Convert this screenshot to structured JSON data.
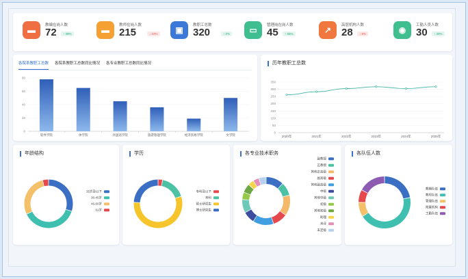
{
  "stats": [
    {
      "label": "教编在岗人数",
      "value": "72",
      "badge": "↑ 39%",
      "dir": "up",
      "color": "#f06e44",
      "icon": "▬"
    },
    {
      "label": "教师在岗人数",
      "value": "215",
      "badge": "↓ 10%",
      "dir": "down",
      "color": "#f5a033",
      "icon": "▬"
    },
    {
      "label": "教职工总数",
      "value": "320",
      "badge": "↑ 0%",
      "dir": "up",
      "color": "#3b78d8",
      "icon": "▣"
    },
    {
      "label": "管理岗在岗人数",
      "value": "45",
      "badge": "↑ 55%",
      "dir": "up",
      "color": "#3fbf8f",
      "icon": "▭"
    },
    {
      "label": "高层机构人数",
      "value": "28",
      "badge": "↓ 8%",
      "dir": "down",
      "color": "#f0773d",
      "icon": "↗"
    },
    {
      "label": "工勤人员人数",
      "value": "30",
      "badge": "↑ 30%",
      "dir": "up",
      "color": "#3fbf8f",
      "icon": "◉"
    }
  ],
  "bar_tabs": [
    "各院系教职工总数",
    "各院系教职工总数同比情况",
    "各专业教职工总数同比情况"
  ],
  "line_title": "历年教职工总数",
  "age_title": "年龄结构",
  "edu_title": "学历",
  "prof_title": "各专业技术职务",
  "team_title": "各队伍人数",
  "chart_data": [
    {
      "type": "bar",
      "categories": [
        "软件学院",
        "体学院",
        "外国语学院",
        "旅游管理学院",
        "经济贸易学院",
        "文学院"
      ],
      "values": [
        78,
        65,
        45,
        36,
        19,
        50
      ],
      "ylim": [
        0,
        80
      ],
      "yticks": [
        0,
        20,
        40,
        60,
        80
      ],
      "xlabel": "",
      "ylabel": ""
    },
    {
      "type": "line",
      "x": [
        "2020年",
        "2021年",
        "2022年",
        "2023年",
        "2024年",
        "2025年"
      ],
      "values": [
        262,
        283,
        305,
        318,
        305,
        318
      ],
      "ylim": [
        0,
        350
      ],
      "yticks": [
        0,
        50,
        100,
        150,
        200,
        250,
        300,
        350
      ]
    },
    {
      "type": "pie",
      "labels": [
        "35岁及以下",
        "36-45岁",
        "46-60岁",
        "61岁"
      ],
      "values": [
        30,
        38,
        28,
        4
      ],
      "colors": [
        "#3b6fc4",
        "#3fbfb0",
        "#f5c06a",
        "#e5484d"
      ]
    },
    {
      "type": "pie",
      "labels": [
        "专科及以下",
        "本科",
        "硕士研究生",
        "博士研究生"
      ],
      "values": [
        3,
        17,
        56,
        24
      ],
      "colors": [
        "#e5484d",
        "#4cc1a3",
        "#f5c52b",
        "#3b6fc4"
      ]
    },
    {
      "type": "pie",
      "labels": [
        "副教授",
        "正教授",
        "其他正高级",
        "副高级",
        "其他副高级",
        "中级",
        "其他中级",
        "初级",
        "其他初级",
        "助理",
        "未评",
        "未定级"
      ],
      "values": [
        12,
        9,
        14,
        10,
        14,
        8,
        9,
        5,
        6,
        4,
        4,
        5
      ],
      "colors": [
        "#3b6fc4",
        "#4cc1a3",
        "#f5b96a",
        "#e5484d",
        "#3f9fe0",
        "#3c4da0",
        "#6fc9b9",
        "#97c848",
        "#6ea845",
        "#f5d64a",
        "#e58fb8",
        "#b7d1ee"
      ]
    },
    {
      "type": "pie",
      "labels": [
        "教辅队伍",
        "教师队伍",
        "管理队伍",
        "附属机构",
        "工勤队伍"
      ],
      "values": [
        22,
        44,
        9,
        8,
        17
      ],
      "colors": [
        "#3b6fc4",
        "#3fbfb0",
        "#f5c06a",
        "#e5484d",
        "#8e5bb3"
      ]
    }
  ]
}
